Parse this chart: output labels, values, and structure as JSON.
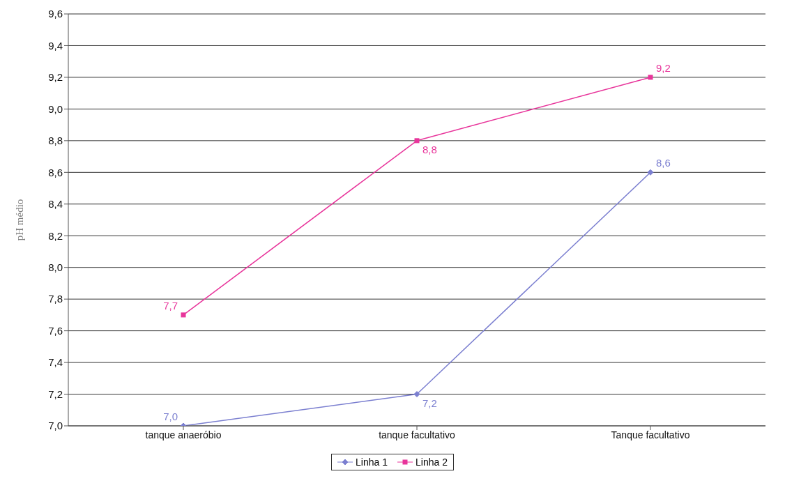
{
  "chart_data": {
    "type": "line",
    "ylabel": "pH médio",
    "categories": [
      "tanque anaeróbio",
      "tanque facultativo",
      "Tanque facultativo"
    ],
    "series": [
      {
        "name": "Linha 1",
        "color": "#7b7fd0",
        "marker": "diamond",
        "values": [
          7.0,
          7.2,
          8.6
        ],
        "value_labels": [
          "7,0",
          "7,2",
          "8,6"
        ]
      },
      {
        "name": "Linha 2",
        "color": "#e8359b",
        "marker": "square",
        "values": [
          7.7,
          8.8,
          9.2
        ],
        "value_labels": [
          "7,7",
          "8,8",
          "9,2"
        ]
      }
    ],
    "ylim": [
      7.0,
      9.6
    ],
    "yticks": [
      {
        "value": 7.0,
        "label": "7,0"
      },
      {
        "value": 7.2,
        "label": "7,2"
      },
      {
        "value": 7.4,
        "label": "7,4"
      },
      {
        "value": 7.6,
        "label": "7,6"
      },
      {
        "value": 7.8,
        "label": "7,8"
      },
      {
        "value": 8.0,
        "label": "8,0"
      },
      {
        "value": 8.2,
        "label": "8,2"
      },
      {
        "value": 8.4,
        "label": "8,4"
      },
      {
        "value": 8.6,
        "label": "8,6"
      },
      {
        "value": 8.8,
        "label": "8,8"
      },
      {
        "value": 9.0,
        "label": "9,0"
      },
      {
        "value": 9.2,
        "label": "9,2"
      },
      {
        "value": 9.4,
        "label": "9,4"
      },
      {
        "value": 9.6,
        "label": "9,6"
      }
    ],
    "grid": "y",
    "legend": "bottom"
  }
}
